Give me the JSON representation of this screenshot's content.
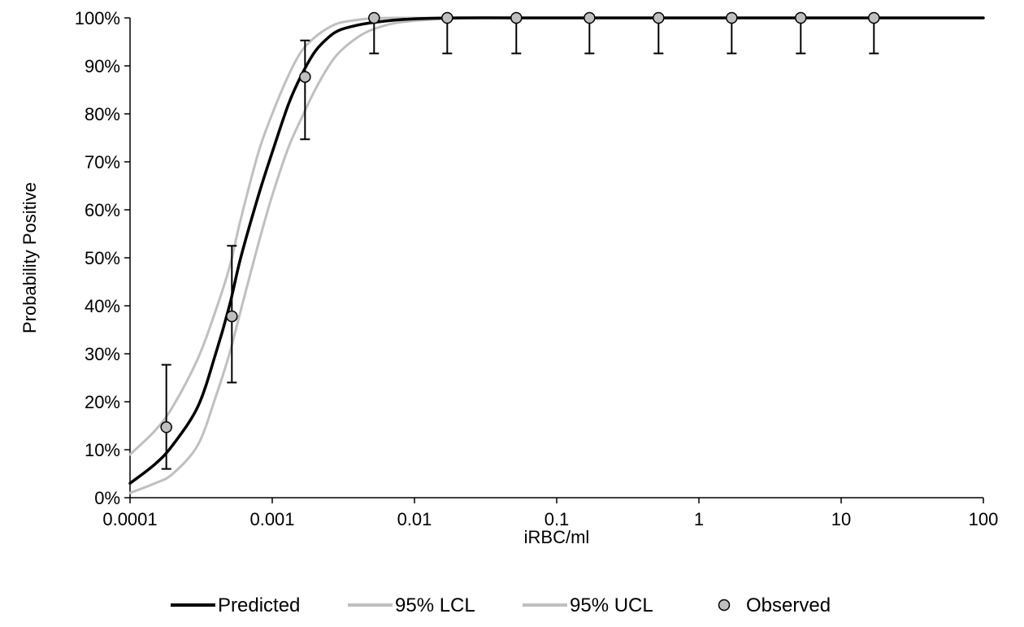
{
  "chart_data": {
    "type": "line",
    "title": "",
    "xlabel": "iRBC/ml",
    "ylabel": "Probability Positive",
    "x_scale": "log",
    "xlim": [
      0.0001,
      100
    ],
    "ylim": [
      0,
      100
    ],
    "y_unit": "%",
    "grid": false,
    "legend_position": "bottom",
    "x_ticks": [
      "0.0001",
      "0.001",
      "0.01",
      "0.1",
      "1",
      "10",
      "100"
    ],
    "y_ticks": [
      "0%",
      "10%",
      "20%",
      "30%",
      "40%",
      "50%",
      "60%",
      "70%",
      "80%",
      "90%",
      "100%"
    ],
    "series": [
      {
        "name": "Predicted",
        "kind": "line",
        "color": "#000000",
        "x": [
          0.0001,
          0.00015,
          0.0002,
          0.0003,
          0.0004,
          0.0005,
          0.0006,
          0.0008,
          0.001,
          0.0013,
          0.0016,
          0.002,
          0.0025,
          0.003,
          0.004,
          0.005,
          0.007,
          0.01,
          0.02,
          0.05,
          0.1,
          1,
          10,
          100
        ],
        "y": [
          3,
          7,
          11,
          19,
          30,
          40,
          50,
          63,
          72,
          82,
          88,
          93,
          96,
          97.5,
          98.5,
          99,
          99.5,
          99.8,
          100,
          100,
          100,
          100,
          100,
          100
        ]
      },
      {
        "name": "95% LCL",
        "kind": "line",
        "color": "#bfbfbf",
        "x": [
          0.0001,
          0.00015,
          0.0002,
          0.0003,
          0.0004,
          0.0005,
          0.0006,
          0.0008,
          0.001,
          0.0013,
          0.0016,
          0.002,
          0.0025,
          0.003,
          0.004,
          0.005,
          0.007,
          0.01,
          0.02,
          0.05,
          0.1,
          1,
          10,
          100
        ],
        "y": [
          1,
          3,
          5,
          11,
          21,
          30,
          39,
          53,
          63,
          73,
          79,
          85,
          90,
          93,
          96,
          97.5,
          98.8,
          99.4,
          99.9,
          100,
          100,
          100,
          100,
          100
        ]
      },
      {
        "name": "95% UCL",
        "kind": "line",
        "color": "#bfbfbf",
        "x": [
          0.0001,
          0.00015,
          0.0002,
          0.0003,
          0.0004,
          0.0005,
          0.0006,
          0.0008,
          0.001,
          0.0013,
          0.0016,
          0.002,
          0.0025,
          0.003,
          0.004,
          0.005,
          0.007,
          0.01,
          0.02,
          0.05,
          0.1,
          1,
          10,
          100
        ],
        "y": [
          9,
          14,
          19,
          29,
          39,
          48,
          58,
          72,
          80,
          88,
          93,
          96,
          98,
          99,
          99.6,
          99.9,
          100,
          100,
          100,
          100,
          100,
          100,
          100,
          100
        ]
      },
      {
        "name": "Observed",
        "kind": "scatter",
        "color": "#bfbfbf",
        "x": [
          0.00018,
          0.00052,
          0.0017,
          0.0052,
          0.017,
          0.052,
          0.17,
          0.52,
          1.7,
          5.2,
          17
        ],
        "y": [
          14.7,
          37.8,
          87.7,
          100,
          100,
          100,
          100,
          100,
          100,
          100,
          100
        ],
        "err_low": [
          6,
          24,
          74.7,
          92.6,
          92.6,
          92.6,
          92.6,
          92.6,
          92.6,
          92.6,
          92.6
        ],
        "err_high": [
          27.7,
          52.5,
          95.3,
          100,
          100,
          100,
          100,
          100,
          100,
          100,
          100
        ]
      }
    ]
  }
}
